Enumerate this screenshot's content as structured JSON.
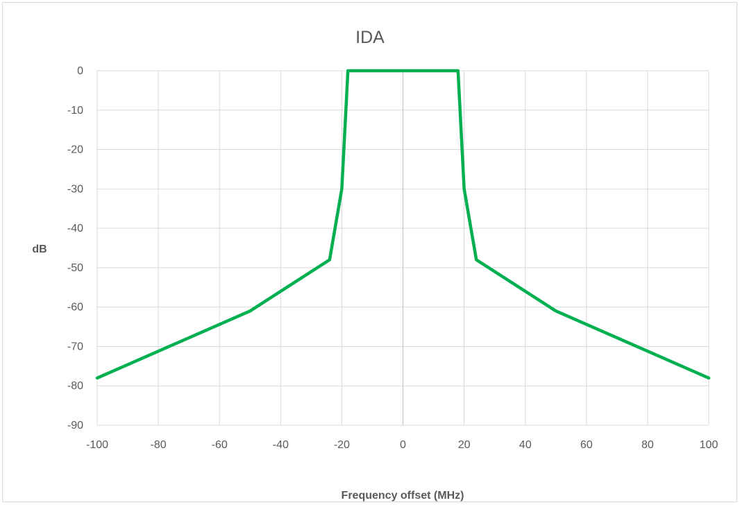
{
  "chart_data": {
    "type": "line",
    "title": "IDA",
    "xlabel": "Frequency offset (MHz)",
    "ylabel": "dB",
    "xlim": [
      -100,
      100
    ],
    "ylim": [
      -90,
      0
    ],
    "x_ticks": [
      -100,
      -80,
      -60,
      -40,
      -20,
      0,
      20,
      40,
      60,
      80,
      100
    ],
    "y_ticks": [
      0,
      -10,
      -20,
      -30,
      -40,
      -50,
      -60,
      -70,
      -80,
      -90
    ],
    "grid": true,
    "legend": "none",
    "series": [
      {
        "color": "#00b050",
        "x": [
          -100,
          -50,
          -24,
          -20,
          -18,
          18,
          20,
          24,
          50,
          100
        ],
        "y": [
          -78,
          -61,
          -48,
          -30,
          0,
          0,
          -30,
          -48,
          -61,
          -78
        ]
      }
    ]
  }
}
